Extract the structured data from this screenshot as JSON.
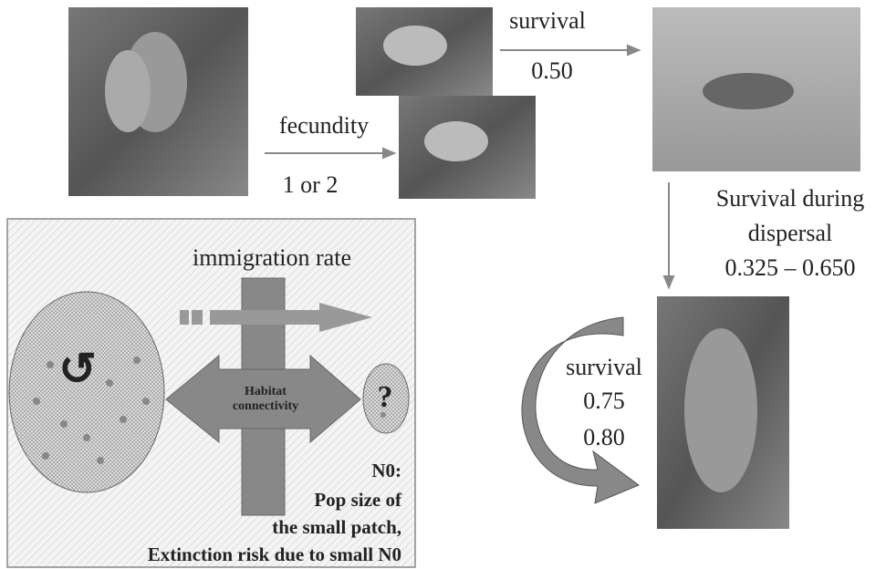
{
  "fecundity": {
    "label": "fecundity",
    "value": "1 or 2"
  },
  "juvenile_survival": {
    "label": "survival",
    "value": "0.50"
  },
  "dispersal_survival": {
    "label": [
      "Survival during",
      "dispersal"
    ],
    "value": "0.325 – 0.650"
  },
  "adult_survival": {
    "label": "survival",
    "values": [
      "0.75",
      "0.80"
    ]
  },
  "patch_panel": {
    "immigration": "immigration rate",
    "connectivity": [
      "Habitat",
      "connectivity"
    ],
    "note": [
      "N0:",
      "Pop size of",
      "the small patch,",
      "Extinction risk due to small N0"
    ]
  }
}
